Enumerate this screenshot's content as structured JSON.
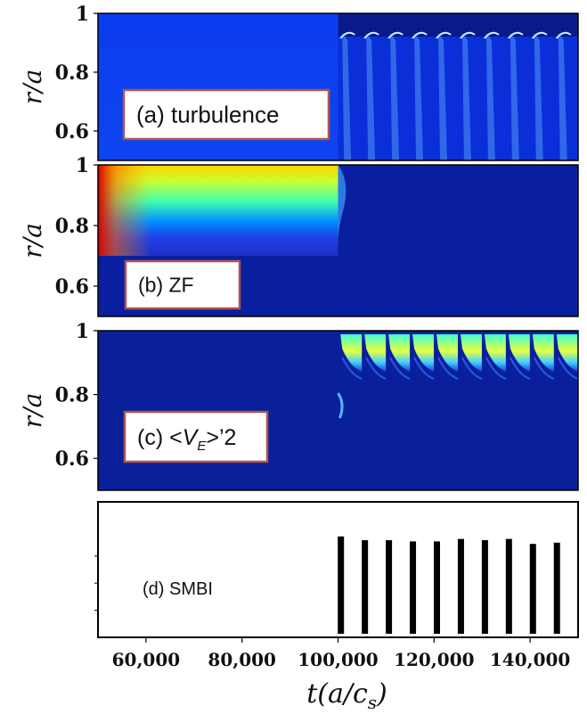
{
  "chart_data": {
    "type": "heatmap",
    "x_axis": {
      "label": "t(a/c_s)",
      "label_parts": {
        "main": "t(a/c",
        "sub": "s",
        "close": ")"
      },
      "range": [
        50000,
        150000
      ],
      "ticks": [
        60000,
        80000,
        100000,
        120000,
        140000
      ],
      "tick_labels": [
        "60,000",
        "80,000",
        "100,000",
        "120,000",
        "140,000"
      ]
    },
    "panels": [
      {
        "id": "a",
        "label": "(a) turbulence",
        "ylabel": "r/a",
        "ylim": [
          0.5,
          1.0
        ],
        "yticks": [
          0.6,
          0.8,
          1.0
        ],
        "ytick_labels": [
          "0.6",
          "0.8",
          "1"
        ],
        "pattern": "turbulence",
        "transition_t": 100000
      },
      {
        "id": "b",
        "label": "(b) ZF",
        "ylabel": "r/a",
        "ylim": [
          0.5,
          1.0
        ],
        "yticks": [
          0.6,
          0.8,
          1.0
        ],
        "ytick_labels": [
          "0.6",
          "0.8",
          "1"
        ],
        "pattern": "zonal_flow",
        "transition_t": 100000
      },
      {
        "id": "c",
        "label": "(c) <V_E>'2",
        "label_parts": {
          "prefix": "(c) ",
          "open": "<",
          "main": "V",
          "sub": "E",
          "close": ">’2"
        },
        "ylabel": "r/a",
        "ylim": [
          0.5,
          1.0
        ],
        "yticks": [
          0.6,
          0.8,
          1.0
        ],
        "ytick_labels": [
          "0.6",
          "0.8",
          "1"
        ],
        "pattern": "ve_shear",
        "transition_t": 100000
      },
      {
        "id": "d",
        "label": "(d) SMBI",
        "pattern": "pulses",
        "pulse_times": [
          100500,
          105500,
          110500,
          115500,
          120500,
          125500,
          130500,
          135500,
          140500,
          145500
        ],
        "pulse_heights": [
          0.78,
          0.75,
          0.75,
          0.74,
          0.74,
          0.76,
          0.75,
          0.76,
          0.72,
          0.73
        ]
      }
    ],
    "colormap": [
      "#00008f",
      "#0000ff",
      "#00ffff",
      "#ffff00",
      "#ff0000"
    ]
  }
}
